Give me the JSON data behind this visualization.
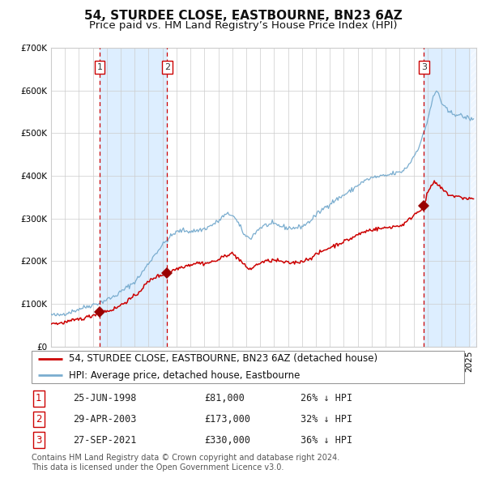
{
  "title": "54, STURDEE CLOSE, EASTBOURNE, BN23 6AZ",
  "subtitle": "Price paid vs. HM Land Registry’s House Price Index (HPI)",
  "ylim": [
    0,
    700000
  ],
  "yticks": [
    0,
    100000,
    200000,
    300000,
    400000,
    500000,
    600000,
    700000
  ],
  "ytick_labels": [
    "£0",
    "£100K",
    "£200K",
    "£300K",
    "£400K",
    "£500K",
    "£600K",
    "£700K"
  ],
  "xlim_start": 1995.0,
  "xlim_end": 2025.5,
  "legend1_label": "54, STURDEE CLOSE, EASTBOURNE, BN23 6AZ (detached house)",
  "legend2_label": "HPI: Average price, detached house, Eastbourne",
  "line1_color": "#cc0000",
  "line2_color": "#7aadcf",
  "marker_color": "#990000",
  "vline_color": "#cc0000",
  "shade_color": "#ddeeff",
  "grid_color": "#cccccc",
  "bg_color": "#ffffff",
  "purchases": [
    {
      "date_num": 1998.48,
      "price": 81000,
      "label": "1"
    },
    {
      "date_num": 2003.33,
      "price": 173000,
      "label": "2"
    },
    {
      "date_num": 2021.74,
      "price": 330000,
      "label": "3"
    }
  ],
  "table_rows": [
    {
      "num": "1",
      "date": "25-JUN-1998",
      "price": "£81,000",
      "note": "26% ↓ HPI"
    },
    {
      "num": "2",
      "date": "29-APR-2003",
      "price": "£173,000",
      "note": "32% ↓ HPI"
    },
    {
      "num": "3",
      "date": "27-SEP-2021",
      "price": "£330,000",
      "note": "36% ↓ HPI"
    }
  ],
  "footer": "Contains HM Land Registry data © Crown copyright and database right 2024.\nThis data is licensed under the Open Government Licence v3.0.",
  "title_fontsize": 11,
  "subtitle_fontsize": 9.5,
  "tick_fontsize": 7.5,
  "legend_fontsize": 8.5,
  "table_fontsize": 8.5,
  "footer_fontsize": 7.0,
  "hpi_anchors": [
    [
      1995.0,
      75000
    ],
    [
      1995.5,
      73000
    ],
    [
      1996.0,
      78000
    ],
    [
      1996.5,
      82000
    ],
    [
      1997.0,
      88000
    ],
    [
      1997.5,
      93000
    ],
    [
      1998.0,
      98000
    ],
    [
      1998.5,
      103000
    ],
    [
      1999.0,
      110000
    ],
    [
      1999.5,
      117000
    ],
    [
      2000.0,
      128000
    ],
    [
      2000.5,
      140000
    ],
    [
      2001.0,
      152000
    ],
    [
      2001.5,
      172000
    ],
    [
      2002.0,
      195000
    ],
    [
      2002.5,
      218000
    ],
    [
      2003.0,
      238000
    ],
    [
      2003.5,
      255000
    ],
    [
      2004.0,
      268000
    ],
    [
      2004.5,
      272000
    ],
    [
      2005.0,
      270000
    ],
    [
      2005.5,
      272000
    ],
    [
      2006.0,
      276000
    ],
    [
      2006.5,
      284000
    ],
    [
      2007.0,
      294000
    ],
    [
      2007.5,
      308000
    ],
    [
      2007.9,
      310000
    ],
    [
      2008.3,
      295000
    ],
    [
      2008.7,
      272000
    ],
    [
      2009.0,
      258000
    ],
    [
      2009.3,
      255000
    ],
    [
      2009.6,
      265000
    ],
    [
      2010.0,
      278000
    ],
    [
      2010.5,
      285000
    ],
    [
      2011.0,
      286000
    ],
    [
      2011.5,
      282000
    ],
    [
      2012.0,
      278000
    ],
    [
      2012.5,
      278000
    ],
    [
      2013.0,
      282000
    ],
    [
      2013.5,
      292000
    ],
    [
      2014.0,
      308000
    ],
    [
      2014.5,
      322000
    ],
    [
      2015.0,
      335000
    ],
    [
      2015.5,
      345000
    ],
    [
      2016.0,
      355000
    ],
    [
      2016.5,
      365000
    ],
    [
      2017.0,
      378000
    ],
    [
      2017.5,
      388000
    ],
    [
      2018.0,
      395000
    ],
    [
      2018.5,
      398000
    ],
    [
      2019.0,
      400000
    ],
    [
      2019.5,
      405000
    ],
    [
      2020.0,
      408000
    ],
    [
      2020.5,
      420000
    ],
    [
      2021.0,
      445000
    ],
    [
      2021.5,
      478000
    ],
    [
      2022.0,
      530000
    ],
    [
      2022.3,
      570000
    ],
    [
      2022.5,
      590000
    ],
    [
      2022.7,
      598000
    ],
    [
      2023.0,
      572000
    ],
    [
      2023.3,
      558000
    ],
    [
      2023.6,
      548000
    ],
    [
      2024.0,
      545000
    ],
    [
      2024.3,
      542000
    ],
    [
      2024.6,
      538000
    ],
    [
      2025.0,
      535000
    ],
    [
      2025.3,
      530000
    ]
  ],
  "red_anchors": [
    [
      1995.0,
      56000
    ],
    [
      1995.5,
      54000
    ],
    [
      1996.0,
      57000
    ],
    [
      1996.5,
      60000
    ],
    [
      1997.0,
      64000
    ],
    [
      1997.5,
      68000
    ],
    [
      1998.0,
      73000
    ],
    [
      1998.48,
      81000
    ],
    [
      1999.0,
      83000
    ],
    [
      1999.5,
      88000
    ],
    [
      2000.0,
      97000
    ],
    [
      2000.5,
      108000
    ],
    [
      2001.0,
      118000
    ],
    [
      2001.5,
      135000
    ],
    [
      2002.0,
      152000
    ],
    [
      2002.5,
      163000
    ],
    [
      2003.0,
      168000
    ],
    [
      2003.33,
      173000
    ],
    [
      2003.7,
      178000
    ],
    [
      2004.0,
      182000
    ],
    [
      2004.5,
      188000
    ],
    [
      2005.0,
      192000
    ],
    [
      2005.5,
      196000
    ],
    [
      2006.0,
      195000
    ],
    [
      2006.5,
      198000
    ],
    [
      2007.0,
      203000
    ],
    [
      2007.5,
      213000
    ],
    [
      2007.9,
      218000
    ],
    [
      2008.3,
      210000
    ],
    [
      2008.7,
      197000
    ],
    [
      2009.0,
      186000
    ],
    [
      2009.3,
      182000
    ],
    [
      2009.6,
      188000
    ],
    [
      2010.0,
      196000
    ],
    [
      2010.5,
      200000
    ],
    [
      2011.0,
      202000
    ],
    [
      2011.5,
      199000
    ],
    [
      2012.0,
      196000
    ],
    [
      2012.5,
      197000
    ],
    [
      2013.0,
      200000
    ],
    [
      2013.5,
      206000
    ],
    [
      2014.0,
      215000
    ],
    [
      2014.5,
      224000
    ],
    [
      2015.0,
      232000
    ],
    [
      2015.5,
      239000
    ],
    [
      2016.0,
      246000
    ],
    [
      2016.5,
      253000
    ],
    [
      2017.0,
      262000
    ],
    [
      2017.5,
      269000
    ],
    [
      2018.0,
      274000
    ],
    [
      2018.5,
      276000
    ],
    [
      2019.0,
      278000
    ],
    [
      2019.5,
      281000
    ],
    [
      2020.0,
      283000
    ],
    [
      2020.5,
      292000
    ],
    [
      2021.0,
      308000
    ],
    [
      2021.74,
      330000
    ],
    [
      2022.0,
      358000
    ],
    [
      2022.3,
      378000
    ],
    [
      2022.5,
      383000
    ],
    [
      2022.7,
      380000
    ],
    [
      2023.0,
      370000
    ],
    [
      2023.3,
      362000
    ],
    [
      2023.6,
      355000
    ],
    [
      2024.0,
      352000
    ],
    [
      2024.3,
      350000
    ],
    [
      2024.6,
      348000
    ],
    [
      2025.0,
      347000
    ],
    [
      2025.3,
      346000
    ]
  ]
}
